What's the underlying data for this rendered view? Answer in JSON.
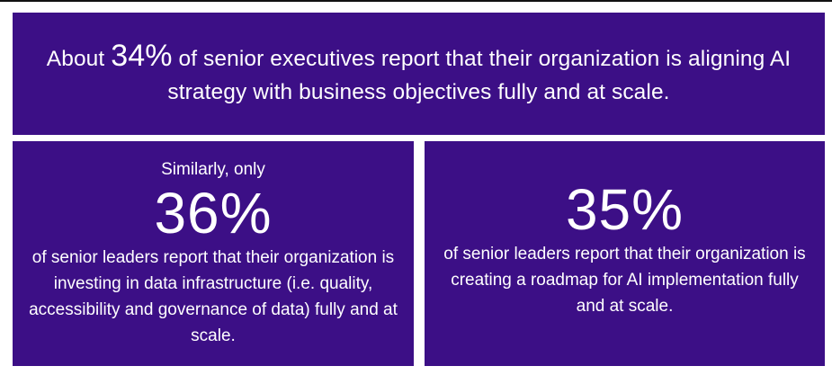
{
  "top_panel": {
    "text_before": "About ",
    "stat": "34%",
    "text_after": " of senior executives report that their organization is aligning AI strategy with business objectives fully and at scale."
  },
  "left_panel": {
    "lead": "Similarly, only",
    "stat": "36%",
    "text": "of senior leaders report that their organization is investing in data infrastructure (i.e. quality, accessibility and governance of data) fully and at scale."
  },
  "right_panel": {
    "stat": "35%",
    "text": "of senior leaders report that their organization is creating a roadmap for AI implementation fully and at scale."
  },
  "colors": {
    "panel_background": "#3c0f86",
    "text": "#ffffff"
  }
}
